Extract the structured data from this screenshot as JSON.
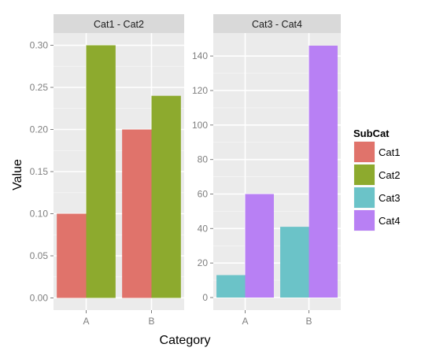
{
  "chart_data": {
    "type": "bar",
    "layout": "faceted-dodged",
    "xlabel": "Category",
    "ylabel": "Value",
    "grid": true,
    "legend": {
      "title": "SubCat",
      "position": "right",
      "entries": [
        {
          "name": "Cat1",
          "color": "#E0736B"
        },
        {
          "name": "Cat2",
          "color": "#8DAA2E"
        },
        {
          "name": "Cat3",
          "color": "#6BC3C8"
        },
        {
          "name": "Cat4",
          "color": "#B880F4"
        }
      ]
    },
    "panels": [
      {
        "title": "Cat1 - Cat2",
        "categories": [
          "A",
          "B"
        ],
        "ylim": [
          -0.0145,
          0.3145
        ],
        "yticks": [
          0.0,
          0.05,
          0.1,
          0.15,
          0.2,
          0.25,
          0.3
        ],
        "ytick_labels": [
          "0.00",
          "0.05",
          "0.10",
          "0.15",
          "0.20",
          "0.25",
          "0.30"
        ],
        "series": [
          {
            "name": "Cat1",
            "values": [
              0.1,
              0.2
            ]
          },
          {
            "name": "Cat2",
            "values": [
              0.3,
              0.24
            ]
          }
        ]
      },
      {
        "title": "Cat3 - Cat4",
        "categories": [
          "A",
          "B"
        ],
        "ylim": [
          -7.3,
          153.3
        ],
        "yticks": [
          0,
          20,
          40,
          60,
          80,
          100,
          120,
          140
        ],
        "ytick_labels": [
          "0",
          "20",
          "40",
          "60",
          "80",
          "100",
          "120",
          "140"
        ],
        "series": [
          {
            "name": "Cat3",
            "values": [
              13,
              41
            ]
          },
          {
            "name": "Cat4",
            "values": [
              60,
              146
            ]
          }
        ]
      }
    ]
  },
  "colors": {
    "panel_background": "#EBEBEB",
    "grid_major": "#FFFFFF",
    "grid_minor": "#F5F5F5",
    "strip_background": "#D9D9D9",
    "tick_text": "#7F7F7F",
    "tick_mark": "#7F7F7F"
  }
}
